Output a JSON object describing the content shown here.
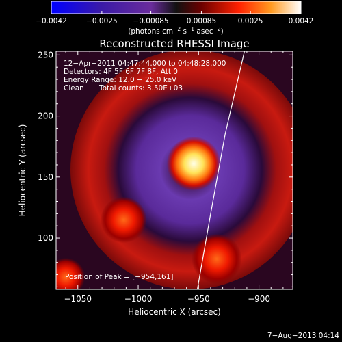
{
  "chart_data": {
    "type": "heatmap",
    "title": "Reconstructed RHESSI Image",
    "xlabel": "Heliocentric X (arcsec)",
    "ylabel": "Heliocentric Y (arcsec)",
    "xlim": [
      -1068,
      -872
    ],
    "ylim": [
      58,
      253
    ],
    "xticks": [
      -1050,
      -1000,
      -950,
      -900
    ],
    "yticks": [
      100,
      150,
      200,
      250
    ],
    "xtick_labels": [
      "−1050",
      "−1000",
      "−950",
      "−900"
    ],
    "ytick_labels": [
      "100",
      "150",
      "200",
      "250"
    ],
    "colorbar": {
      "min": -0.0042,
      "max": 0.0042,
      "ticks": [
        -0.0042,
        -0.0025,
        -0.00085,
        0.00085,
        0.0025,
        0.0042
      ],
      "tick_labels": [
        "−0.0042",
        "−0.0025",
        "−0.00085",
        "0.00085",
        "0.0025",
        "0.0042"
      ],
      "units_main": "(photons cm",
      "units_sup1": "−2",
      "units_mid": " s",
      "units_sup2": "−1",
      "units_mid2": " asec",
      "units_sup3": "−2",
      "units_end": ")",
      "colors": [
        "#0000ff",
        "#4b0082",
        "#8a2be2",
        "#000000",
        "#8b0000",
        "#ff0000",
        "#ff8c00",
        "#ffff66",
        "#ffffff"
      ]
    },
    "annotations": [
      "12−Apr−2011 04:47:44.000 to 04:48:28.000",
      "Detectors: 4F 5F 6F 7F 8F, Att 0",
      "Energy Range: 12.0 − 25.0 keV",
      "Clean",
      "Total counts: 3.50E+03"
    ],
    "peak_label": "Position of Peak = [−954,161]",
    "peak": [
      -954,
      161
    ],
    "sources": [
      {
        "x": -954,
        "y": 161,
        "r": 14,
        "level": 1.0
      },
      {
        "x": -1012,
        "y": 115,
        "r": 12,
        "level": 0.55
      },
      {
        "x": -935,
        "y": 83,
        "r": 13,
        "level": 0.55
      },
      {
        "x": -1060,
        "y": 68,
        "r": 10,
        "level": 0.5
      }
    ],
    "limb_curve": [
      [
        -951,
        58
      ],
      [
        -940,
        120
      ],
      [
        -928,
        185
      ],
      [
        -912,
        253
      ]
    ]
  },
  "footer": {
    "date_stamp": "7−Aug−2013 04:14"
  }
}
